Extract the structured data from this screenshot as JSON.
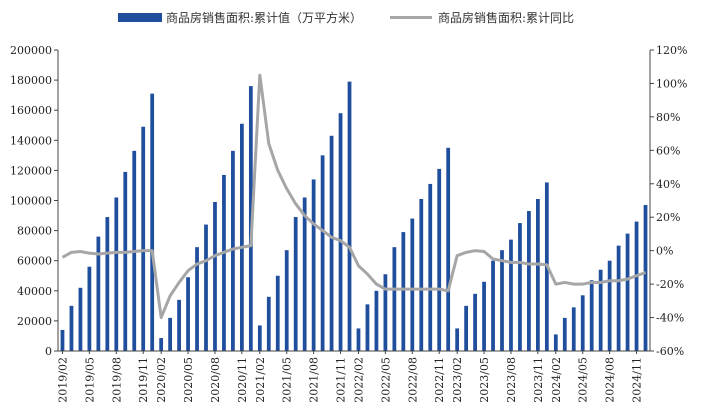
{
  "chart_data": {
    "type": "bar",
    "legend": {
      "position": "top",
      "bar_series_name": "商品房销售面积:累计值（万平方米）",
      "line_series_name": "商品房销售面积:累计同比"
    },
    "colors": {
      "bar": "#1f4e9c",
      "line": "#a6a6a6"
    },
    "y_left": {
      "min": 0,
      "max": 200000,
      "step": 20000,
      "tick_labels": [
        "0",
        "20000",
        "40000",
        "60000",
        "80000",
        "100000",
        "120000",
        "140000",
        "160000",
        "180000",
        "200000"
      ]
    },
    "y_right": {
      "min": -60,
      "max": 120,
      "step": 20,
      "tick_labels": [
        "-60%",
        "-40%",
        "-20%",
        "0%",
        "20%",
        "40%",
        "60%",
        "80%",
        "100%",
        "120%"
      ]
    },
    "x_tick_labels": [
      "2019/02",
      "2019/05",
      "2019/08",
      "2019/11",
      "2020/02",
      "2020/05",
      "2020/08",
      "2020/11",
      "2021/02",
      "2021/05",
      "2021/08",
      "2021/11",
      "2022/02",
      "2022/05",
      "2022/08",
      "2022/11",
      "2023/02",
      "2023/05",
      "2023/08",
      "2023/11",
      "2024/02",
      "2024/05",
      "2024/08",
      "2024/11"
    ],
    "categories": [
      "2019/02",
      "2019/03",
      "2019/04",
      "2019/05",
      "2019/06",
      "2019/07",
      "2019/08",
      "2019/09",
      "2019/10",
      "2019/11",
      "2019/12",
      "2020/02",
      "2020/03",
      "2020/04",
      "2020/05",
      "2020/06",
      "2020/07",
      "2020/08",
      "2020/09",
      "2020/10",
      "2020/11",
      "2020/12",
      "2021/02",
      "2021/03",
      "2021/04",
      "2021/05",
      "2021/06",
      "2021/07",
      "2021/08",
      "2021/09",
      "2021/10",
      "2021/11",
      "2021/12",
      "2022/02",
      "2022/03",
      "2022/04",
      "2022/05",
      "2022/06",
      "2022/07",
      "2022/08",
      "2022/09",
      "2022/10",
      "2022/11",
      "2022/12",
      "2023/02",
      "2023/03",
      "2023/04",
      "2023/05",
      "2023/06",
      "2023/07",
      "2023/08",
      "2023/09",
      "2023/10",
      "2023/11",
      "2023/12",
      "2024/02",
      "2024/03",
      "2024/04",
      "2024/05",
      "2024/06",
      "2024/07",
      "2024/08",
      "2024/09",
      "2024/10",
      "2024/11",
      "2024/12"
    ],
    "bar_values": [
      14000,
      30000,
      42000,
      56000,
      76000,
      89000,
      102000,
      119000,
      133000,
      149000,
      171000,
      8600,
      22000,
      34000,
      49000,
      69000,
      84000,
      99000,
      117000,
      133000,
      151000,
      176000,
      17000,
      36000,
      50000,
      67000,
      89000,
      102000,
      114000,
      130000,
      143000,
      158000,
      179000,
      15000,
      31000,
      40000,
      51000,
      69000,
      79000,
      88000,
      101000,
      111000,
      121000,
      135000,
      15000,
      30000,
      38000,
      46000,
      60000,
      67000,
      74000,
      85000,
      93000,
      101000,
      112000,
      11000,
      22000,
      29000,
      37000,
      47000,
      54000,
      60000,
      70000,
      78000,
      86000,
      97000
    ],
    "line_values": [
      -4,
      -1,
      -0.5,
      -1.5,
      -2,
      -1.5,
      -1,
      -1,
      -0.5,
      0,
      0,
      -40,
      -27,
      -19,
      -12,
      -8,
      -6,
      -3,
      -1,
      1,
      2,
      3,
      105,
      64,
      48,
      37,
      28,
      21,
      16,
      12,
      8,
      6,
      2,
      -9,
      -14,
      -20,
      -23,
      -23,
      -23,
      -23,
      -23,
      -23,
      -23,
      -24,
      -3,
      -1,
      0,
      -0.5,
      -5,
      -6,
      -7,
      -7,
      -8,
      -8,
      -8.5,
      -20,
      -19,
      -20,
      -20,
      -19,
      -19,
      -18,
      -18,
      -17,
      -15,
      -13
    ]
  }
}
